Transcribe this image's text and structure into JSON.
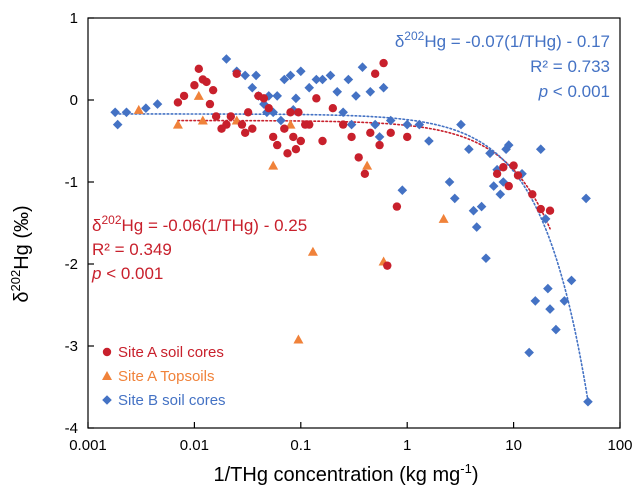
{
  "chart_data": {
    "type": "scatter",
    "title": "",
    "xlabel": "1/THg concentration (kg mg⁻¹)",
    "xlabel_main": "1/THg concentration (kg mg",
    "xlabel_sup": "-1",
    "xlabel_tail": ")",
    "ylabel": "δ202Hg (‰)",
    "ylabel_main": "δ",
    "ylabel_sup": "202",
    "ylabel_tail": "Hg (‰)",
    "x_scale": "log",
    "xlim": [
      0.001,
      100
    ],
    "ylim": [
      -4,
      1
    ],
    "x_ticks": [
      0.001,
      0.01,
      0.1,
      1,
      10,
      100
    ],
    "x_tick_labels": [
      "0.001",
      "0.01",
      "0.1",
      "1",
      "10",
      "100"
    ],
    "y_ticks": [
      -4,
      -3,
      -2,
      -1,
      0,
      1
    ],
    "y_tick_labels": [
      "-4",
      "-3",
      "-2",
      "-1",
      "0",
      "1"
    ],
    "grid": false,
    "legend_position": "bottom-left",
    "series": [
      {
        "name": "Site A soil cores",
        "marker": "circle",
        "color": "#c8202c",
        "x": [
          0.007,
          0.008,
          0.01,
          0.011,
          0.012,
          0.013,
          0.014,
          0.015,
          0.016,
          0.018,
          0.02,
          0.022,
          0.025,
          0.028,
          0.03,
          0.032,
          0.035,
          0.04,
          0.045,
          0.05,
          0.055,
          0.06,
          0.07,
          0.075,
          0.08,
          0.085,
          0.09,
          0.095,
          0.1,
          0.11,
          0.12,
          0.14,
          0.16,
          0.2,
          0.25,
          0.3,
          0.35,
          0.4,
          0.45,
          0.5,
          0.55,
          0.6,
          0.65,
          0.7,
          0.8,
          1.0,
          7.0,
          8.0,
          9.0,
          10.0,
          11.0,
          15.0,
          18.0,
          22.0
        ],
        "y": [
          -0.03,
          0.05,
          0.18,
          0.38,
          0.25,
          0.22,
          -0.05,
          0.12,
          -0.2,
          -0.35,
          -0.3,
          -0.2,
          0.32,
          -0.3,
          -0.4,
          -0.15,
          -0.35,
          0.05,
          0.02,
          -0.1,
          -0.45,
          -0.55,
          -0.35,
          -0.65,
          -0.15,
          -0.45,
          -0.6,
          -0.15,
          -0.5,
          -0.3,
          -0.3,
          0.02,
          -0.5,
          -0.1,
          -0.3,
          -0.45,
          -0.7,
          -0.9,
          -0.4,
          0.32,
          -0.55,
          0.45,
          -2.02,
          -0.4,
          -1.3,
          -0.45,
          -0.9,
          -0.82,
          -1.05,
          -0.8,
          -0.92,
          -1.15,
          -1.33,
          -1.35
        ]
      },
      {
        "name": "Site A Topsoils",
        "marker": "triangle",
        "color": "#f0823a",
        "x": [
          0.003,
          0.007,
          0.011,
          0.012,
          0.025,
          0.055,
          0.08,
          0.095,
          0.13,
          0.42,
          0.6,
          2.2
        ],
        "y": [
          -0.12,
          -0.3,
          0.05,
          -0.25,
          -0.25,
          -0.8,
          -0.3,
          -2.92,
          -1.85,
          -0.8,
          -1.97,
          -1.45
        ]
      },
      {
        "name": "Site B soil cores",
        "marker": "diamond",
        "color": "#4472c4",
        "x": [
          0.0018,
          0.0019,
          0.0023,
          0.0035,
          0.0045,
          0.02,
          0.025,
          0.03,
          0.035,
          0.038,
          0.04,
          0.045,
          0.048,
          0.05,
          0.055,
          0.06,
          0.065,
          0.07,
          0.08,
          0.085,
          0.09,
          0.1,
          0.12,
          0.14,
          0.16,
          0.19,
          0.22,
          0.25,
          0.28,
          0.3,
          0.33,
          0.38,
          0.45,
          0.5,
          0.55,
          0.6,
          0.7,
          0.9,
          1.0,
          1.3,
          1.6,
          2.5,
          2.8,
          3.2,
          3.8,
          4.2,
          4.5,
          5.0,
          5.5,
          6.0,
          6.5,
          7.0,
          7.5,
          8.0,
          8.5,
          9.0,
          12.0,
          14.0,
          16.0,
          18.0,
          20.0,
          21.0,
          22.0,
          25.0,
          30.0,
          35.0,
          48.0,
          50.0
        ],
        "y": [
          -0.15,
          -0.3,
          -0.15,
          -0.1,
          -0.05,
          0.5,
          0.35,
          0.3,
          0.15,
          0.3,
          0.05,
          -0.05,
          -0.15,
          0.05,
          -0.15,
          0.05,
          -0.25,
          0.25,
          0.3,
          -0.12,
          0.02,
          0.35,
          0.15,
          0.25,
          0.25,
          0.3,
          0.1,
          -0.15,
          0.25,
          -0.3,
          0.05,
          0.4,
          0.1,
          -0.3,
          -0.45,
          0.15,
          -0.25,
          -1.1,
          -0.3,
          -0.3,
          -0.5,
          -1.0,
          -1.2,
          -0.3,
          -0.6,
          -1.35,
          -1.55,
          -1.3,
          -1.93,
          -0.65,
          -1.05,
          -0.85,
          -1.15,
          -1.0,
          -0.6,
          -0.55,
          -0.9,
          -3.08,
          -2.45,
          -0.6,
          -1.45,
          -2.3,
          -2.55,
          -2.8,
          -2.45,
          -2.2,
          -1.2,
          -3.68
        ]
      }
    ],
    "trendlines": [
      {
        "series": "Site A soil cores",
        "style": "dotted",
        "color": "#c8202c",
        "slope": -0.06,
        "intercept": -0.25,
        "x_range": [
          0.007,
          22
        ],
        "equation_main": "δ",
        "equation_sup": "202",
        "equation_tail": "Hg = -0.06(1/THg) - 0.25",
        "r2": "R² = 0.349",
        "p_italic": "p",
        "p_rest": " < 0.001"
      },
      {
        "series": "Site B soil cores",
        "style": "dotted",
        "color": "#4472c4",
        "slope": -0.07,
        "intercept": -0.17,
        "x_range": [
          0.0018,
          50
        ],
        "equation_main": "δ",
        "equation_sup": "202",
        "equation_tail": "Hg = -0.07(1/THg) - 0.17",
        "r2": "R² = 0.733",
        "p_italic": "p",
        "p_rest": " < 0.001"
      }
    ]
  }
}
